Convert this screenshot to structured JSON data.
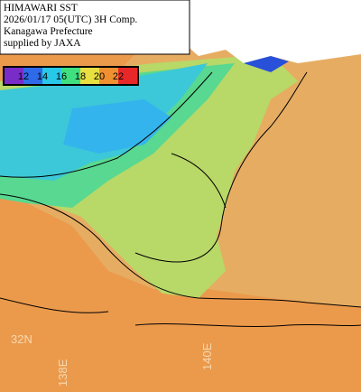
{
  "header": {
    "lines": [
      "HIMAWARI SST",
      "2026/01/17 05(UTC) 3H Comp.",
      "Kanagawa Prefecture",
      "supplied by JAXA"
    ]
  },
  "colorbar": {
    "ticks": [
      12,
      14,
      16,
      18,
      20,
      22
    ],
    "colors": [
      "#7a2cc8",
      "#2f6be8",
      "#28c8e8",
      "#40e080",
      "#e8e040",
      "#f09030",
      "#e82828"
    ]
  },
  "grid_labels": {
    "lat": [
      "32N"
    ],
    "lon": [
      "138E",
      "140E"
    ]
  }
}
